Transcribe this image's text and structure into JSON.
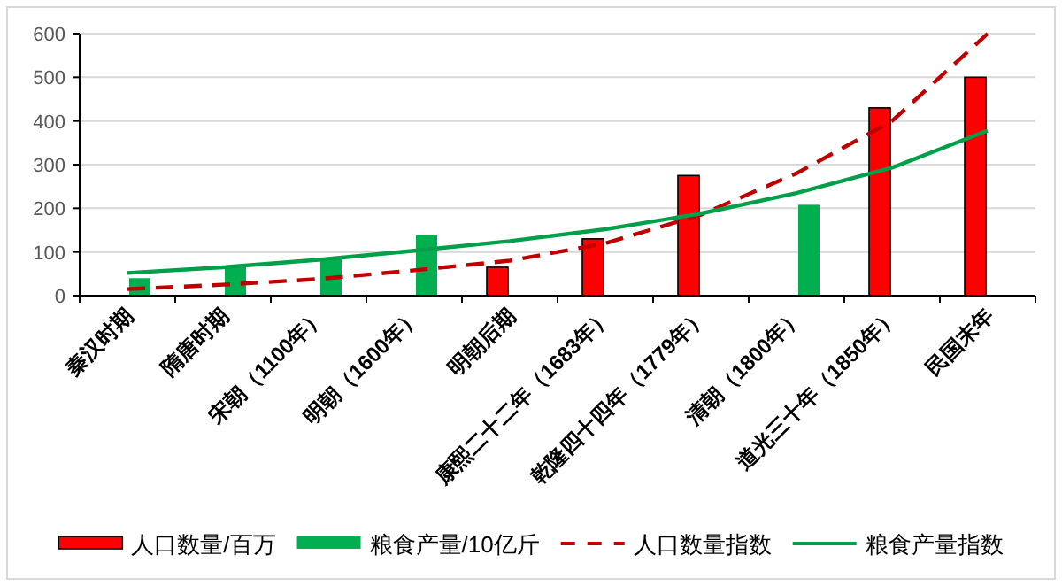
{
  "chart_data": {
    "type": "bar",
    "categories": [
      "秦汉时期",
      "隋唐时期",
      "宋朝（1100年）",
      "明朝（1600年）",
      "明朝后期",
      "康熙二十二年（1683年）",
      "乾隆四十四年（1779年）",
      "清朝（1800年）",
      "道光三十年（1850年）",
      "民国末年"
    ],
    "series": [
      {
        "name": "人口数量/百万",
        "color": "#ff0000",
        "values": [
          null,
          null,
          null,
          null,
          65,
          130,
          275,
          null,
          430,
          500
        ]
      },
      {
        "name": "粮食产量/10亿斤",
        "color": "#00b050",
        "values": [
          40,
          65,
          85,
          140,
          null,
          null,
          null,
          208,
          null,
          null
        ]
      },
      {
        "name": "人口数量指数",
        "type": "line",
        "line_style": "dashed",
        "color": "#c00000",
        "values": [
          15,
          25,
          38,
          58,
          80,
          120,
          185,
          280,
          400,
          600
        ]
      },
      {
        "name": "粮食产量指数",
        "type": "line",
        "line_style": "solid",
        "color": "#00a04b",
        "values": [
          52,
          65,
          82,
          103,
          125,
          152,
          188,
          235,
          293,
          378
        ]
      }
    ],
    "ylim": [
      0,
      600
    ],
    "yticks": [
      0,
      100,
      200,
      300,
      400,
      500,
      600
    ],
    "grid": "y",
    "legend": "bottom"
  }
}
